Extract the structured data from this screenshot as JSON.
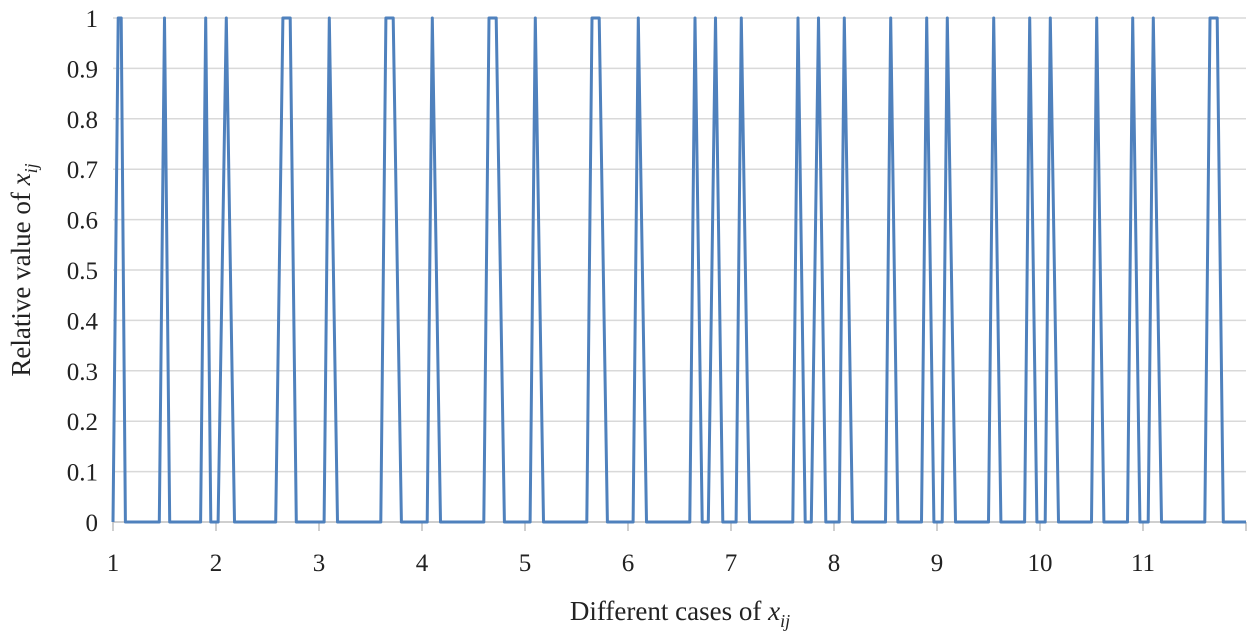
{
  "chart_data": {
    "type": "line",
    "ylabel_main": "Relative value of ",
    "ylabel_var": "x",
    "ylabel_sub": "ij",
    "xlabel_main": "Different cases of ",
    "xlabel_var": "x",
    "xlabel_sub": "ij",
    "ylim": [
      0,
      1
    ],
    "xlim": [
      1,
      12
    ],
    "yticks": [
      "0",
      "0.1",
      "0.2",
      "0.3",
      "0.4",
      "0.5",
      "0.6",
      "0.7",
      "0.8",
      "0.9",
      "1"
    ],
    "xticks": [
      "1",
      "2",
      "3",
      "4",
      "5",
      "6",
      "7",
      "8",
      "9",
      "10",
      "11"
    ],
    "grid": true,
    "series_color": "#4f81bd",
    "series": [
      {
        "x": [
          1.0,
          1.05,
          1.08,
          1.12,
          1.45,
          1.5,
          1.55,
          1.85,
          1.9,
          1.95,
          2.02,
          2.1,
          2.18,
          2.58,
          2.65,
          2.72,
          2.78,
          3.05,
          3.1,
          3.18,
          3.6,
          3.65,
          3.72,
          3.8,
          4.05,
          4.1,
          4.18,
          4.6,
          4.65,
          4.72,
          4.8,
          5.05,
          5.1,
          5.18,
          5.6,
          5.65,
          5.72,
          5.8,
          6.05,
          6.1,
          6.18,
          6.6,
          6.65,
          6.72,
          6.78,
          6.85,
          6.92,
          7.05,
          7.1,
          7.18,
          7.6,
          7.65,
          7.72,
          7.78,
          7.85,
          7.92,
          8.05,
          8.1,
          8.18,
          8.5,
          8.55,
          8.62,
          8.85,
          8.9,
          8.97,
          9.05,
          9.1,
          9.18,
          9.5,
          9.55,
          9.62,
          9.85,
          9.9,
          9.97,
          10.05,
          10.1,
          10.18,
          10.5,
          10.55,
          10.62,
          10.85,
          10.9,
          10.97,
          11.05,
          11.1,
          11.18,
          11.6,
          11.65,
          11.72,
          11.78,
          12.0
        ],
        "y": [
          0,
          1,
          1,
          0,
          0,
          1,
          0,
          0,
          1,
          0,
          0,
          1,
          0,
          0,
          1,
          1,
          0,
          0,
          1,
          0,
          0,
          1,
          1,
          0,
          0,
          1,
          0,
          0,
          1,
          1,
          0,
          0,
          1,
          0,
          0,
          1,
          1,
          0,
          0,
          1,
          0,
          0,
          1,
          0,
          0,
          1,
          0,
          0,
          1,
          0,
          0,
          1,
          0,
          0,
          1,
          0,
          0,
          1,
          0,
          0,
          1,
          0,
          0,
          1,
          0,
          0,
          1,
          0,
          0,
          1,
          0,
          0,
          1,
          0,
          0,
          1,
          0,
          0,
          1,
          0,
          0,
          1,
          0,
          0,
          1,
          0,
          0,
          1,
          1,
          0,
          0
        ]
      }
    ]
  }
}
